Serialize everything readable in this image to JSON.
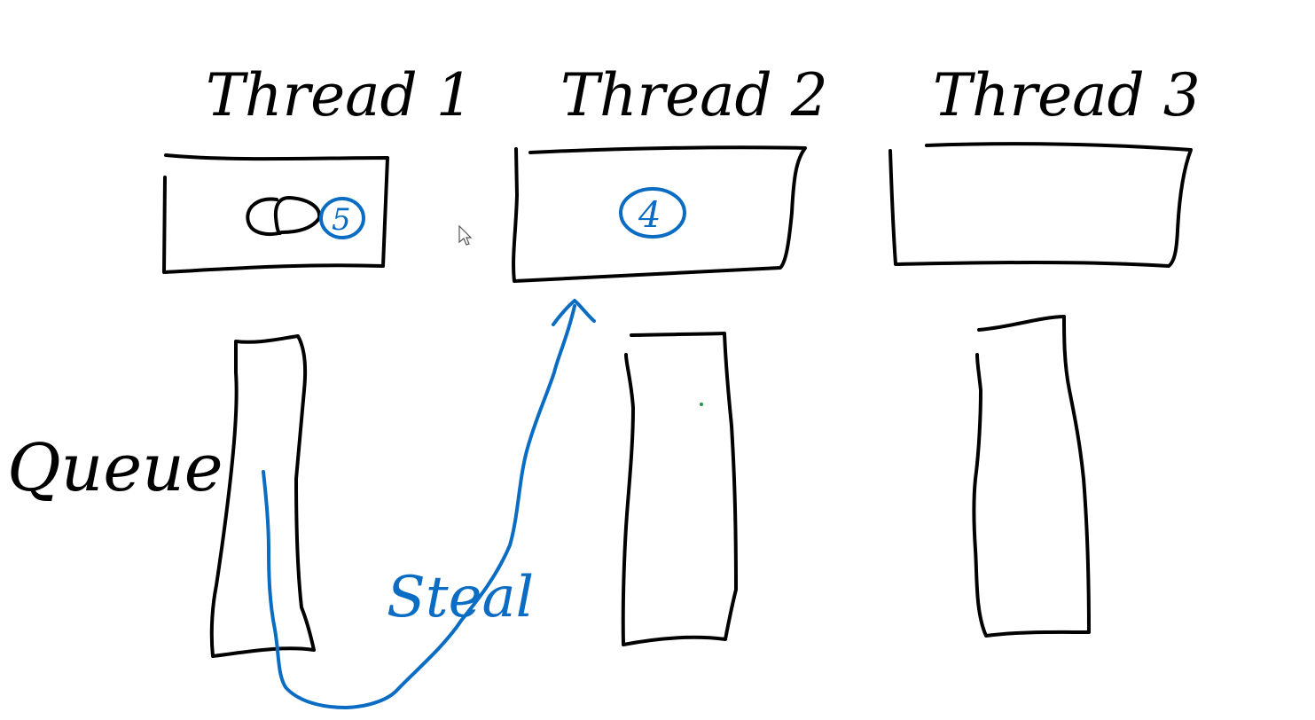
{
  "threads": [
    {
      "label": "Thread 1",
      "tasks": [
        "",
        "5"
      ]
    },
    {
      "label": "Thread 2",
      "tasks": [
        "4"
      ]
    },
    {
      "label": "Thread 3",
      "tasks": []
    }
  ],
  "queue_label": "Queue",
  "steal_label": "Steal",
  "colors": {
    "ink": "#000000",
    "highlight": "#0a6cc2",
    "background": "#ffffff",
    "dot": "#1a9c4a"
  }
}
